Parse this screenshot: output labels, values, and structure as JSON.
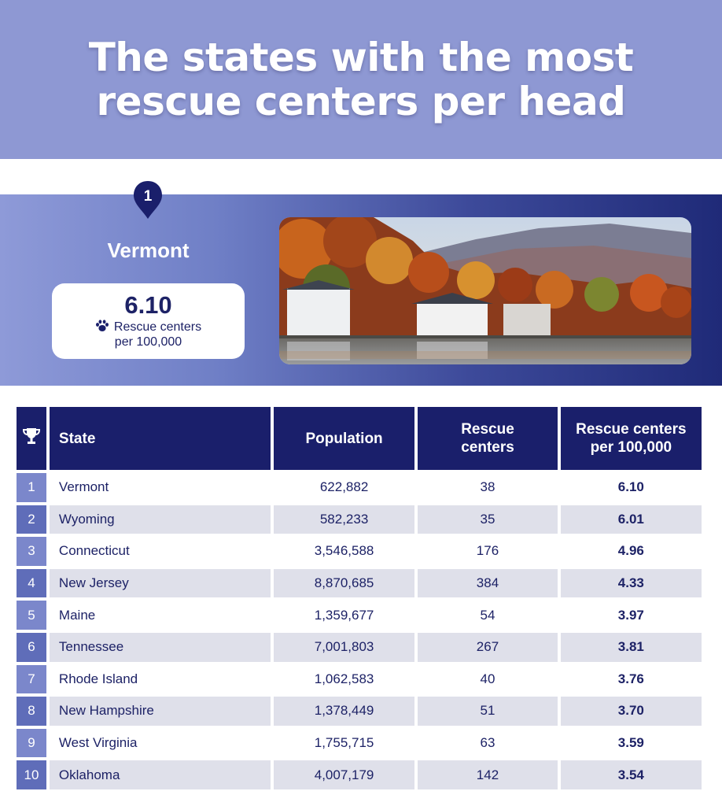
{
  "header": {
    "title_line1": "The states with the most",
    "title_line2": "rescue centers per head"
  },
  "feature": {
    "rank": "1",
    "state": "Vermont",
    "value": "6.10",
    "label_line1": "Rescue centers",
    "label_line2": "per 100,000",
    "icon": "paw-icon",
    "photo": "lakeside-houses-autumn-photo"
  },
  "table": {
    "headers": {
      "rank_icon": "trophy-icon",
      "state": "State",
      "population": "Population",
      "rescue_centers_l1": "Rescue",
      "rescue_centers_l2": "centers",
      "rate_l1": "Rescue centers",
      "rate_l2": "per 100,000"
    },
    "rows": [
      {
        "rank": "1",
        "state": "Vermont",
        "population": "622,882",
        "centers": "38",
        "rate": "6.10"
      },
      {
        "rank": "2",
        "state": "Wyoming",
        "population": "582,233",
        "centers": "35",
        "rate": "6.01"
      },
      {
        "rank": "3",
        "state": "Connecticut",
        "population": "3,546,588",
        "centers": "176",
        "rate": "4.96"
      },
      {
        "rank": "4",
        "state": "New Jersey",
        "population": "8,870,685",
        "centers": "384",
        "rate": "4.33"
      },
      {
        "rank": "5",
        "state": "Maine",
        "population": "1,359,677",
        "centers": "54",
        "rate": "3.97"
      },
      {
        "rank": "6",
        "state": "Tennessee",
        "population": "7,001,803",
        "centers": "267",
        "rate": "3.81"
      },
      {
        "rank": "7",
        "state": "Rhode Island",
        "population": "1,062,583",
        "centers": "40",
        "rate": "3.76"
      },
      {
        "rank": "8",
        "state": "New Hampshire",
        "population": "1,378,449",
        "centers": "51",
        "rate": "3.70"
      },
      {
        "rank": "9",
        "state": "West Virginia",
        "population": "1,755,715",
        "centers": "63",
        "rate": "3.59"
      },
      {
        "rank": "10",
        "state": "Oklahoma",
        "population": "4,007,179",
        "centers": "142",
        "rate": "3.54"
      }
    ]
  },
  "colors": {
    "header_bg": "#8e98d3",
    "navy": "#1a1f6b",
    "rank_bg": "#6f7dc4",
    "row_alt": "#dfe0ea"
  }
}
